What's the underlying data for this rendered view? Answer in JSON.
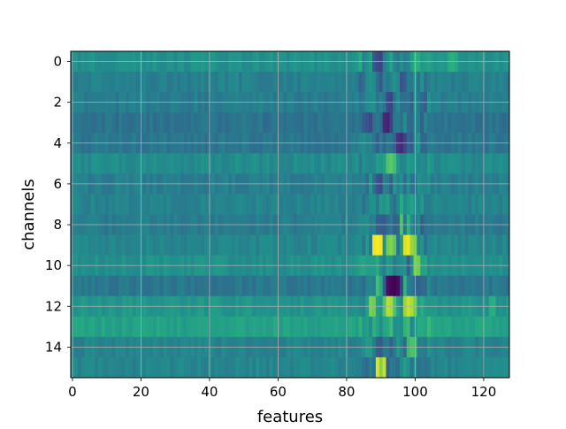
{
  "chart_data": {
    "type": "heatmap",
    "title": "",
    "xlabel": "features",
    "ylabel": "channels",
    "colormap": "viridis",
    "grid": true,
    "xlim": [
      -0.5,
      127.5
    ],
    "ylim": [
      15.5,
      -0.5
    ],
    "x_ticks": [
      0,
      20,
      40,
      60,
      80,
      100,
      120
    ],
    "x_tick_labels": [
      "0",
      "20",
      "40",
      "60",
      "80",
      "100",
      "120"
    ],
    "y_ticks": [
      0,
      2,
      4,
      6,
      8,
      10,
      12,
      14
    ],
    "y_tick_labels": [
      "0",
      "2",
      "4",
      "6",
      "8",
      "10",
      "12",
      "14"
    ],
    "n_rows": 16,
    "n_cols": 128,
    "value_range": [
      0,
      1
    ],
    "row_base_values": [
      0.5,
      0.44,
      0.42,
      0.38,
      0.4,
      0.48,
      0.43,
      0.45,
      0.42,
      0.46,
      0.5,
      0.4,
      0.52,
      0.58,
      0.45,
      0.46
    ],
    "hot_cells": [
      {
        "row": 0,
        "col": 88,
        "value": 0.28
      },
      {
        "row": 0,
        "col": 89,
        "value": 0.22
      },
      {
        "row": 0,
        "col": 90,
        "value": 0.2
      },
      {
        "row": 0,
        "col": 95,
        "value": 0.4
      },
      {
        "row": 0,
        "col": 100,
        "value": 0.65
      },
      {
        "row": 0,
        "col": 101,
        "value": 0.62
      },
      {
        "row": 0,
        "col": 110,
        "value": 0.62
      },
      {
        "row": 0,
        "col": 111,
        "value": 0.64
      },
      {
        "row": 0,
        "col": 112,
        "value": 0.6
      },
      {
        "row": 1,
        "col": 90,
        "value": 0.28
      },
      {
        "row": 1,
        "col": 96,
        "value": 0.25
      },
      {
        "row": 1,
        "col": 97,
        "value": 0.3
      },
      {
        "row": 2,
        "col": 92,
        "value": 0.22
      },
      {
        "row": 2,
        "col": 93,
        "value": 0.2
      },
      {
        "row": 2,
        "col": 99,
        "value": 0.3
      },
      {
        "row": 3,
        "col": 86,
        "value": 0.25
      },
      {
        "row": 3,
        "col": 87,
        "value": 0.22
      },
      {
        "row": 3,
        "col": 91,
        "value": 0.12
      },
      {
        "row": 3,
        "col": 92,
        "value": 0.1
      },
      {
        "row": 3,
        "col": 93,
        "value": 0.2
      },
      {
        "row": 4,
        "col": 95,
        "value": 0.15
      },
      {
        "row": 4,
        "col": 96,
        "value": 0.12
      },
      {
        "row": 4,
        "col": 97,
        "value": 0.2
      },
      {
        "row": 5,
        "col": 92,
        "value": 0.72
      },
      {
        "row": 5,
        "col": 93,
        "value": 0.75
      },
      {
        "row": 5,
        "col": 94,
        "value": 0.7
      },
      {
        "row": 5,
        "col": 89,
        "value": 0.55
      },
      {
        "row": 6,
        "col": 89,
        "value": 0.25
      },
      {
        "row": 6,
        "col": 90,
        "value": 0.22
      },
      {
        "row": 6,
        "col": 93,
        "value": 0.3
      },
      {
        "row": 7,
        "col": 96,
        "value": 0.62
      },
      {
        "row": 7,
        "col": 99,
        "value": 0.58
      },
      {
        "row": 8,
        "col": 90,
        "value": 0.3
      },
      {
        "row": 8,
        "col": 91,
        "value": 0.28
      },
      {
        "row": 8,
        "col": 96,
        "value": 0.72
      },
      {
        "row": 8,
        "col": 98,
        "value": 0.65
      },
      {
        "row": 9,
        "col": 88,
        "value": 0.98
      },
      {
        "row": 9,
        "col": 89,
        "value": 1.0
      },
      {
        "row": 9,
        "col": 90,
        "value": 0.98
      },
      {
        "row": 9,
        "col": 92,
        "value": 0.78
      },
      {
        "row": 9,
        "col": 93,
        "value": 0.82
      },
      {
        "row": 9,
        "col": 94,
        "value": 0.75
      },
      {
        "row": 9,
        "col": 97,
        "value": 0.95
      },
      {
        "row": 9,
        "col": 98,
        "value": 0.98
      },
      {
        "row": 9,
        "col": 99,
        "value": 0.85
      },
      {
        "row": 9,
        "col": 100,
        "value": 0.8
      },
      {
        "row": 10,
        "col": 84,
        "value": 0.58
      },
      {
        "row": 10,
        "col": 85,
        "value": 0.6
      },
      {
        "row": 10,
        "col": 86,
        "value": 0.56
      },
      {
        "row": 10,
        "col": 87,
        "value": 0.55
      },
      {
        "row": 10,
        "col": 89,
        "value": 0.62
      },
      {
        "row": 10,
        "col": 98,
        "value": 0.3
      },
      {
        "row": 10,
        "col": 100,
        "value": 0.8
      },
      {
        "row": 10,
        "col": 101,
        "value": 0.78
      },
      {
        "row": 11,
        "col": 89,
        "value": 0.7
      },
      {
        "row": 11,
        "col": 90,
        "value": 0.62
      },
      {
        "row": 11,
        "col": 91,
        "value": 0.3
      },
      {
        "row": 11,
        "col": 92,
        "value": 0.05
      },
      {
        "row": 11,
        "col": 93,
        "value": 0.02
      },
      {
        "row": 11,
        "col": 94,
        "value": 0.0
      },
      {
        "row": 11,
        "col": 95,
        "value": 0.03
      },
      {
        "row": 11,
        "col": 96,
        "value": 0.2
      },
      {
        "row": 11,
        "col": 97,
        "value": 0.65
      },
      {
        "row": 12,
        "col": 87,
        "value": 0.8
      },
      {
        "row": 12,
        "col": 88,
        "value": 0.78
      },
      {
        "row": 12,
        "col": 91,
        "value": 0.72
      },
      {
        "row": 12,
        "col": 92,
        "value": 0.9
      },
      {
        "row": 12,
        "col": 93,
        "value": 0.88
      },
      {
        "row": 12,
        "col": 94,
        "value": 0.72
      },
      {
        "row": 12,
        "col": 97,
        "value": 0.85
      },
      {
        "row": 12,
        "col": 98,
        "value": 0.92
      },
      {
        "row": 12,
        "col": 99,
        "value": 0.88
      },
      {
        "row": 12,
        "col": 100,
        "value": 0.78
      },
      {
        "row": 12,
        "col": 122,
        "value": 0.62
      },
      {
        "row": 12,
        "col": 123,
        "value": 0.64
      },
      {
        "row": 13,
        "col": 97,
        "value": 0.65
      },
      {
        "row": 13,
        "col": 98,
        "value": 0.68
      },
      {
        "row": 14,
        "col": 89,
        "value": 0.3
      },
      {
        "row": 14,
        "col": 90,
        "value": 0.28
      },
      {
        "row": 14,
        "col": 93,
        "value": 0.32
      },
      {
        "row": 14,
        "col": 98,
        "value": 0.68
      },
      {
        "row": 14,
        "col": 99,
        "value": 0.72
      },
      {
        "row": 14,
        "col": 100,
        "value": 0.7
      },
      {
        "row": 15,
        "col": 89,
        "value": 0.95
      },
      {
        "row": 15,
        "col": 90,
        "value": 0.82
      },
      {
        "row": 15,
        "col": 91,
        "value": 0.92
      },
      {
        "row": 15,
        "col": 92,
        "value": 0.3
      },
      {
        "row": 15,
        "col": 93,
        "value": 0.42
      },
      {
        "row": 15,
        "col": 94,
        "value": 0.4
      }
    ]
  }
}
